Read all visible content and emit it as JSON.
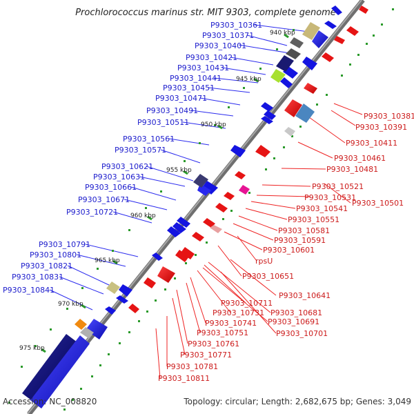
{
  "title": "Prochlorococcus marinus str. MIT 9303, complete genome",
  "footer": {
    "accession": "Accession: NC_008820",
    "summary": "Topology: circular; Length: 2,682,675 bp; Genes: 3,049"
  },
  "colors": {
    "forward_label": "#1a1acc",
    "reverse_label": "#cc1a1a",
    "backbone": "#808080",
    "forward_gene": "#1414e0",
    "reverse_gene": "#e61414",
    "tick": "#2a9a2a"
  },
  "kbp_ticks": [
    "940 kbp",
    "945 kbp",
    "950 kbp",
    "955 kbp",
    "960 kbp",
    "965 kbp",
    "970 kbp",
    "975 kbp"
  ],
  "forward_labels": [
    "P9303_10361",
    "P9303_10371",
    "P9303_10401",
    "P9303_10421",
    "P9303_10431",
    "P9303_10441",
    "P9303_10451",
    "P9303_10471",
    "P9303_10491",
    "P9303_10511",
    "P9303_10561",
    "P9303_10571",
    "P9303_10621",
    "P9303_10631",
    "P9303_10661",
    "P9303_10671",
    "P9303_10721",
    "P9303_10791",
    "P9303_10801",
    "P9303_10821",
    "P9303_10831",
    "P9303_10841"
  ],
  "reverse_labels": [
    "P9303_10381",
    "P9303_10391",
    "P9303_10411",
    "P9303_10461",
    "P9303_10481",
    "P9303_10521",
    "P9303_10501",
    "P9303_10531",
    "P9303_10541",
    "P9303_10551",
    "P9303_10581",
    "P9303_10591",
    "P9303_10601",
    "rpsU",
    "P9303_10651",
    "P9303_10641",
    "P9303_10711",
    "P9303_10681",
    "P9303_10731",
    "P9303_10691",
    "P9303_10741",
    "P9303_10701",
    "P9303_10751",
    "P9303_10761",
    "P9303_10771",
    "P9303_10781",
    "P9303_10811"
  ]
}
